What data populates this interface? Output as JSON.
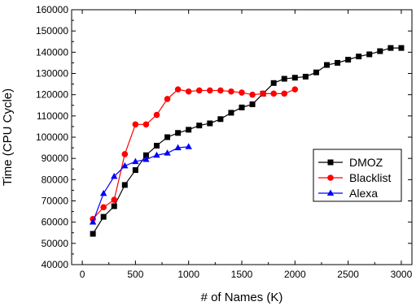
{
  "chart_data": {
    "type": "line",
    "title": "",
    "xlabel": "# of Names (K)",
    "ylabel": "Time (CPU Cycle)",
    "xlim": [
      -100,
      3100
    ],
    "ylim": [
      40000,
      160000
    ],
    "xticks": [
      0,
      500,
      1000,
      1500,
      2000,
      2500,
      3000
    ],
    "xtick_labels": [
      "0",
      "500",
      "1000",
      "1500",
      "2000",
      "2500",
      "3000"
    ],
    "yticks": [
      40000,
      50000,
      60000,
      70000,
      80000,
      90000,
      100000,
      110000,
      120000,
      130000,
      140000,
      150000,
      160000
    ],
    "ytick_labels": [
      "40000",
      "50000",
      "60000",
      "70000",
      "80000",
      "90000",
      "100000",
      "110000",
      "120000",
      "130000",
      "140000",
      "150000",
      "160000"
    ],
    "grid": false,
    "legend_position": "right",
    "series": [
      {
        "name": "DMOZ",
        "color": "#000000",
        "marker": "square",
        "x": [
          100,
          200,
          300,
          400,
          500,
          600,
          700,
          800,
          900,
          1000,
          1100,
          1200,
          1300,
          1400,
          1500,
          1600,
          1700,
          1800,
          1900,
          2000,
          2100,
          2200,
          2300,
          2400,
          2500,
          2600,
          2700,
          2800,
          2900,
          3000
        ],
        "y": [
          54500,
          62500,
          67500,
          77500,
          84500,
          91500,
          96000,
          100000,
          102000,
          103500,
          105500,
          106500,
          108500,
          111500,
          114000,
          115500,
          120500,
          125500,
          127500,
          128000,
          128500,
          130500,
          134000,
          135000,
          136500,
          138000,
          139000,
          140500,
          142000,
          142000
        ]
      },
      {
        "name": "Blacklist",
        "color": "#ff0000",
        "marker": "circle",
        "x": [
          100,
          200,
          300,
          400,
          500,
          600,
          700,
          800,
          900,
          1000,
          1100,
          1200,
          1300,
          1400,
          1500,
          1600,
          1700,
          1800,
          1900,
          2000
        ],
        "y": [
          61500,
          67000,
          70500,
          92000,
          106000,
          106000,
          110500,
          118000,
          122500,
          121500,
          122000,
          122000,
          122000,
          121500,
          121000,
          120000,
          120500,
          120500,
          120500,
          122500
        ]
      },
      {
        "name": "Alexa",
        "color": "#0000ff",
        "marker": "triangle",
        "x": [
          100,
          200,
          300,
          400,
          500,
          600,
          700,
          800,
          900,
          1000
        ],
        "y": [
          60000,
          73500,
          81500,
          86500,
          88500,
          89500,
          91500,
          92500,
          95000,
          95500
        ]
      }
    ]
  }
}
